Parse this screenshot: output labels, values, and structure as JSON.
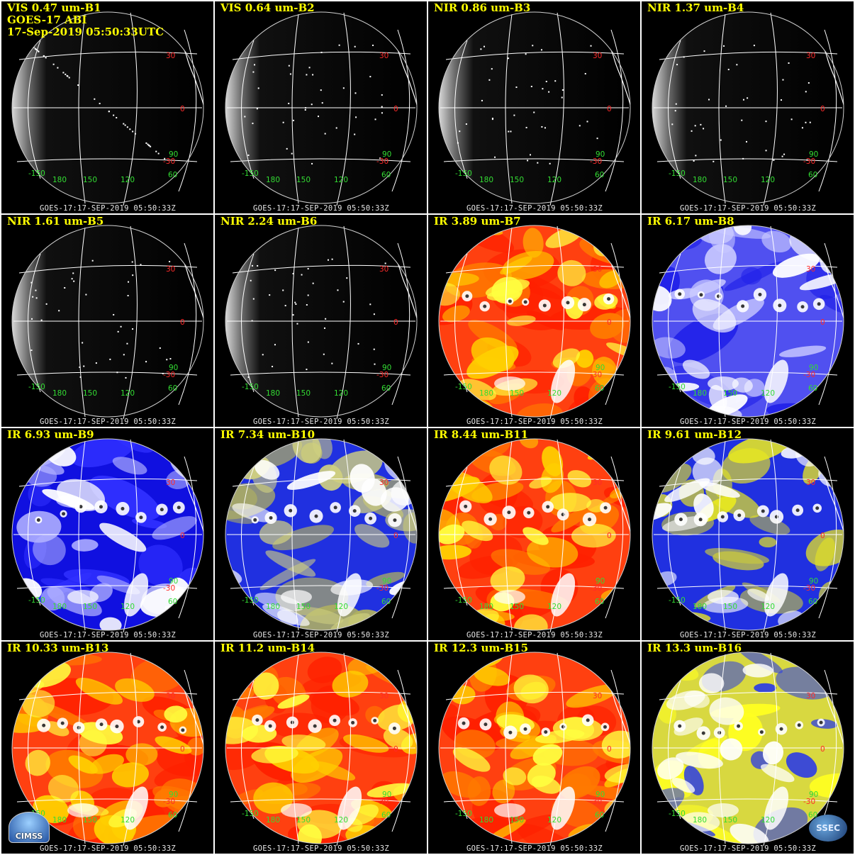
{
  "header_lines": [
    "GOES-17 ABI",
    "17-Sep-2019 05:50:33UTC"
  ],
  "footer_text": "GOES-17:17-SEP-2019 05:50:33Z",
  "lat_labels": [
    "30",
    "0",
    "-30"
  ],
  "lon_labels": [
    "-150",
    "180",
    "150",
    "120",
    "60",
    "90"
  ],
  "logos": {
    "left": "CIMSS",
    "right": "SSEC"
  },
  "colors": {
    "title": "#ffff00",
    "lat_label": "#ff2a2a",
    "lon_label": "#33dd33",
    "grid": "#ffffff"
  },
  "panels": [
    {
      "title": "VIS 0.47 um-B1",
      "style": "vis"
    },
    {
      "title": "VIS 0.64 um-B2",
      "style": "vis"
    },
    {
      "title": "NIR 0.86 um-B3",
      "style": "vis"
    },
    {
      "title": "NIR 1.37 um-B4",
      "style": "vis"
    },
    {
      "title": "NIR 1.61 um-B5",
      "style": "vis"
    },
    {
      "title": "NIR 2.24 um-B6",
      "style": "vis"
    },
    {
      "title": "IR 3.89 um-B7",
      "style": "ir-warm"
    },
    {
      "title": "IR 6.17 um-B8",
      "style": "wv-light"
    },
    {
      "title": "IR 6.93 um-B9",
      "style": "wv"
    },
    {
      "title": "IR 7.34 um-B10",
      "style": "wv-olive"
    },
    {
      "title": "IR 8.44 um-B11",
      "style": "ir-warm"
    },
    {
      "title": "IR 9.61 um-B12",
      "style": "ozone"
    },
    {
      "title": "IR 10.33 um-B13",
      "style": "ir-warm"
    },
    {
      "title": "IR 11.2 um-B14",
      "style": "ir-warm"
    },
    {
      "title": "IR 12.3 um-B15",
      "style": "ir-warm"
    },
    {
      "title": "IR 13.3 um-B16",
      "style": "co2"
    }
  ]
}
